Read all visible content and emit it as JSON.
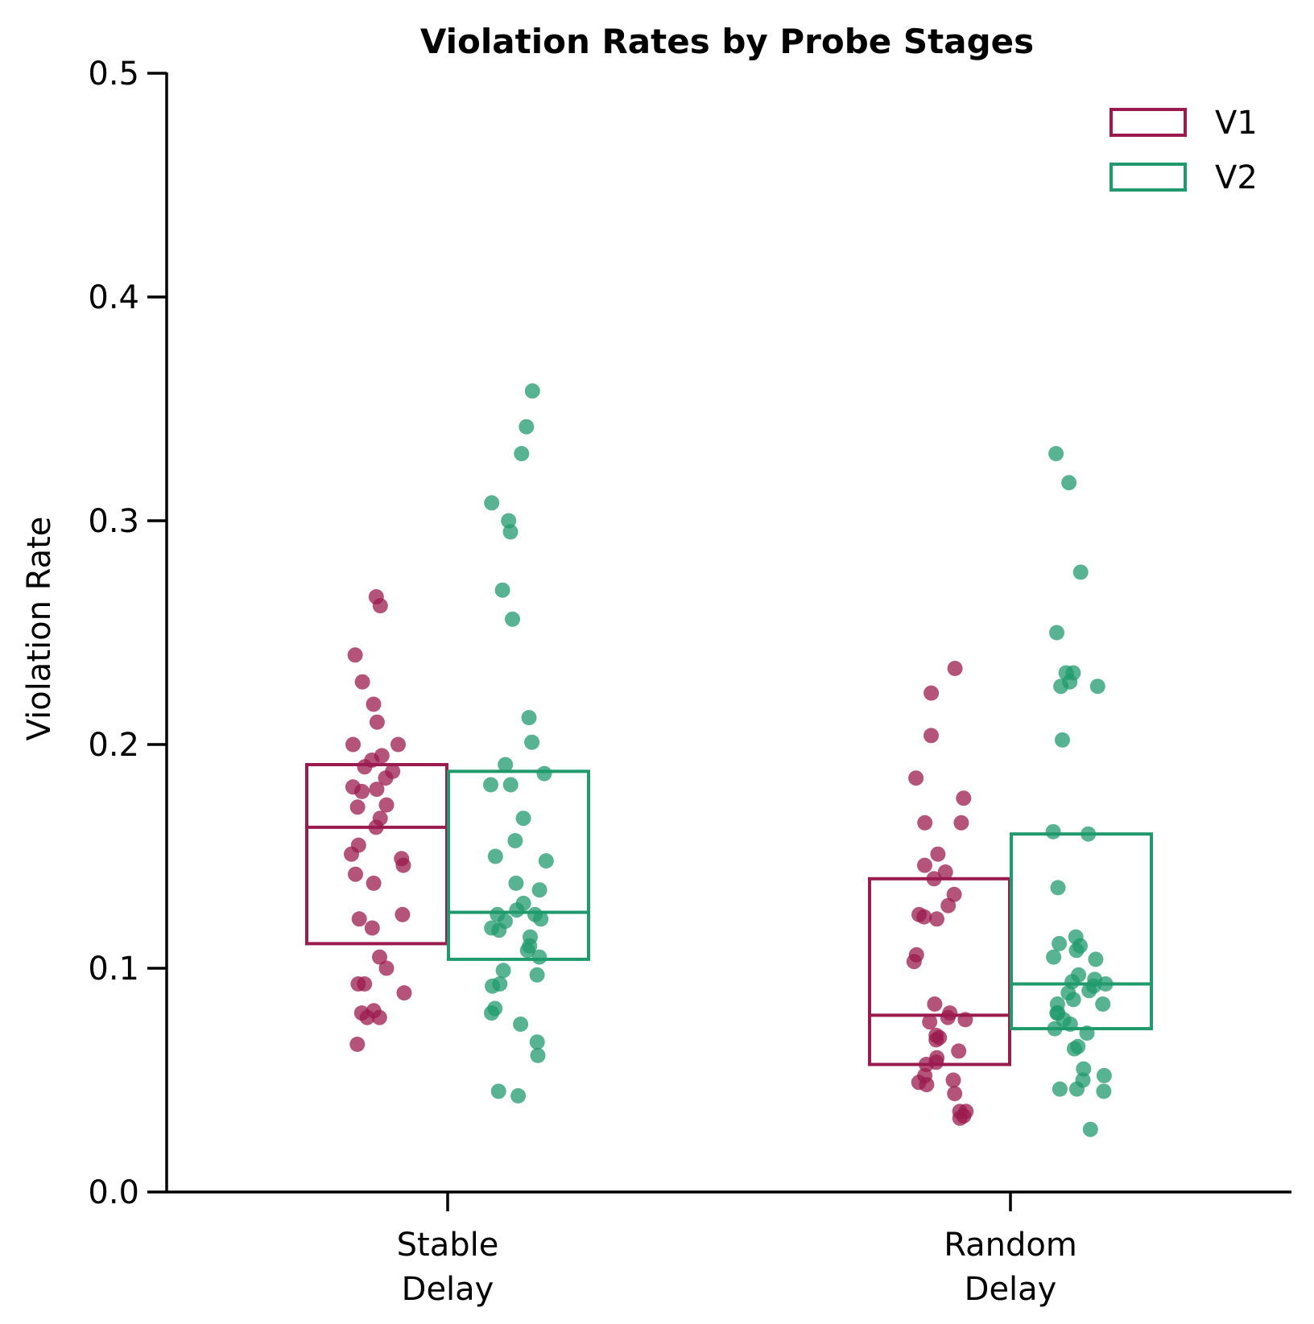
{
  "chart_data": {
    "type": "box-strip",
    "title": "Violation Rates by Probe Stages",
    "xlabel": "",
    "ylabel": "Violation Rate",
    "ylim": [
      0.0,
      0.5
    ],
    "yticks": [
      "0.0",
      "0.1",
      "0.2",
      "0.3",
      "0.4",
      "0.5"
    ],
    "categories": [
      {
        "lines": [
          "Stable",
          "Delay"
        ]
      },
      {
        "lines": [
          "Random",
          "Delay"
        ]
      }
    ],
    "legend": {
      "placement": "top-right"
    },
    "grid": false,
    "series": [
      {
        "name": "V1",
        "color": "#9b1b4f",
        "boxes": [
          {
            "q1": 0.111,
            "median": 0.163,
            "q3": 0.191
          },
          {
            "q1": 0.057,
            "median": 0.079,
            "q3": 0.14
          }
        ],
        "points": [
          [
            0.266,
            0.262,
            0.24,
            0.228,
            0.218,
            0.21,
            0.2,
            0.2,
            0.195,
            0.193,
            0.19,
            0.188,
            0.185,
            0.181,
            0.18,
            0.179,
            0.173,
            0.172,
            0.167,
            0.163,
            0.155,
            0.151,
            0.149,
            0.146,
            0.142,
            0.138,
            0.124,
            0.122,
            0.118,
            0.105,
            0.1,
            0.093,
            0.093,
            0.089,
            0.081,
            0.08,
            0.078,
            0.078,
            0.066
          ],
          [
            0.234,
            0.223,
            0.204,
            0.185,
            0.176,
            0.165,
            0.165,
            0.151,
            0.146,
            0.143,
            0.14,
            0.133,
            0.128,
            0.124,
            0.123,
            0.122,
            0.106,
            0.103,
            0.084,
            0.08,
            0.078,
            0.077,
            0.076,
            0.07,
            0.069,
            0.068,
            0.063,
            0.06,
            0.058,
            0.057,
            0.052,
            0.05,
            0.049,
            0.048,
            0.044,
            0.036,
            0.036,
            0.034,
            0.033
          ]
        ]
      },
      {
        "name": "V2",
        "color": "#1f9a6c",
        "boxes": [
          {
            "q1": 0.104,
            "median": 0.125,
            "q3": 0.188
          },
          {
            "q1": 0.073,
            "median": 0.093,
            "q3": 0.16
          }
        ],
        "points": [
          [
            0.358,
            0.342,
            0.33,
            0.308,
            0.3,
            0.295,
            0.269,
            0.256,
            0.212,
            0.201,
            0.191,
            0.187,
            0.182,
            0.182,
            0.167,
            0.157,
            0.15,
            0.148,
            0.138,
            0.135,
            0.129,
            0.126,
            0.124,
            0.124,
            0.122,
            0.121,
            0.118,
            0.117,
            0.114,
            0.11,
            0.108,
            0.105,
            0.099,
            0.097,
            0.093,
            0.092,
            0.082,
            0.08,
            0.075,
            0.067,
            0.061,
            0.045,
            0.043
          ],
          [
            0.33,
            0.317,
            0.277,
            0.25,
            0.232,
            0.232,
            0.228,
            0.226,
            0.226,
            0.202,
            0.161,
            0.16,
            0.136,
            0.114,
            0.111,
            0.11,
            0.108,
            0.105,
            0.104,
            0.097,
            0.095,
            0.094,
            0.093,
            0.092,
            0.09,
            0.089,
            0.086,
            0.084,
            0.084,
            0.08,
            0.08,
            0.077,
            0.075,
            0.073,
            0.071,
            0.065,
            0.064,
            0.055,
            0.052,
            0.05,
            0.046,
            0.046,
            0.045,
            0.028
          ]
        ]
      }
    ]
  }
}
